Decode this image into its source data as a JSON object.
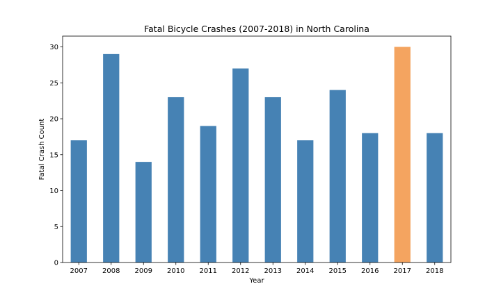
{
  "chart_data": {
    "type": "bar",
    "title": "Fatal Bicycle Crashes (2007-2018) in North Carolina",
    "xlabel": "Year",
    "ylabel": "Fatal Crash Count",
    "categories": [
      "2007",
      "2008",
      "2009",
      "2010",
      "2011",
      "2012",
      "2013",
      "2014",
      "2015",
      "2016",
      "2017",
      "2018"
    ],
    "values": [
      17,
      29,
      14,
      23,
      19,
      27,
      23,
      17,
      24,
      18,
      30,
      18
    ],
    "ylim": [
      0,
      31.5
    ],
    "yticks": [
      0,
      5,
      10,
      15,
      20,
      25,
      30
    ],
    "grid": false,
    "legend": "none",
    "colors": {
      "default": "#4682b4",
      "highlight": "#f4a460"
    },
    "highlight_category": "2017"
  }
}
